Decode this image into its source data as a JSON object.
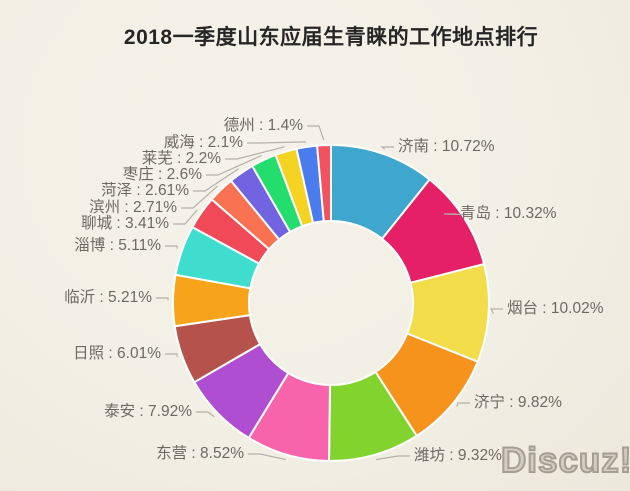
{
  "title": "2018一季度山东应届生青睐的工作地点排行",
  "watermark": "Discuz!",
  "colors": {
    "background": "#f2efe5",
    "title_text": "#262626",
    "label_text": "#6e6a63",
    "leader_line": "#b5b1a8",
    "slice_border": "#ffffff",
    "watermark_text": "#d3cdc1"
  },
  "chart_data": {
    "type": "pie",
    "subtype": "donut",
    "title": "2018一季度山东应届生青睐的工作地点排行",
    "unit": "percent",
    "start_angle_deg": -90,
    "direction": "clockwise",
    "inner_radius_ratio": 0.52,
    "legend_position": "around-slices",
    "total": 100.0,
    "slices": [
      {
        "city": "济南",
        "value": 10.72,
        "label": "济南 : 10.72%",
        "color": "#3fa6ce",
        "side": "right"
      },
      {
        "city": "青岛",
        "value": 10.32,
        "label": "青岛 : 10.32%",
        "color": "#e62066",
        "side": "right"
      },
      {
        "city": "烟台",
        "value": 10.02,
        "label": "烟台 : 10.02%",
        "color": "#f3dc4a",
        "side": "right"
      },
      {
        "city": "济宁",
        "value": 9.82,
        "label": "济宁 : 9.82%",
        "color": "#f5931d",
        "side": "right"
      },
      {
        "city": "潍坊",
        "value": 9.32,
        "label": "潍坊 : 9.32%",
        "color": "#83d32f",
        "side": "right"
      },
      {
        "city": "东营",
        "value": 8.52,
        "label": "东营 : 8.52%",
        "color": "#f864ab",
        "side": "left"
      },
      {
        "city": "泰安",
        "value": 7.92,
        "label": "泰安 : 7.92%",
        "color": "#b04ed2",
        "side": "left"
      },
      {
        "city": "日照",
        "value": 6.01,
        "label": "日照 : 6.01%",
        "color": "#b4524b",
        "side": "left"
      },
      {
        "city": "临沂",
        "value": 5.21,
        "label": "临沂 : 5.21%",
        "color": "#f8a41b",
        "side": "left"
      },
      {
        "city": "淄博",
        "value": 5.11,
        "label": "淄博 : 5.11%",
        "color": "#3eddcd",
        "side": "left"
      },
      {
        "city": "聊城",
        "value": 3.41,
        "label": "聊城 : 3.41%",
        "color": "#f04a58",
        "side": "left"
      },
      {
        "city": "滨州",
        "value": 2.71,
        "label": "滨州 : 2.71%",
        "color": "#f87252",
        "side": "left"
      },
      {
        "city": "菏泽",
        "value": 2.61,
        "label": "菏泽 : 2.61%",
        "color": "#7263e0",
        "side": "left"
      },
      {
        "city": "枣庄",
        "value": 2.6,
        "label": "枣庄 : 2.6%",
        "color": "#23dd6d",
        "side": "left"
      },
      {
        "city": "莱芜",
        "value": 2.2,
        "label": "莱芜 : 2.2%",
        "color": "#f5d322",
        "side": "left"
      },
      {
        "city": "威海",
        "value": 2.1,
        "label": "威海 : 2.1%",
        "color": "#4b7cee",
        "side": "left"
      },
      {
        "city": "德州",
        "value": 1.4,
        "label": "德州 : 1.4%",
        "color": "#f2525f",
        "side": "left"
      }
    ]
  }
}
